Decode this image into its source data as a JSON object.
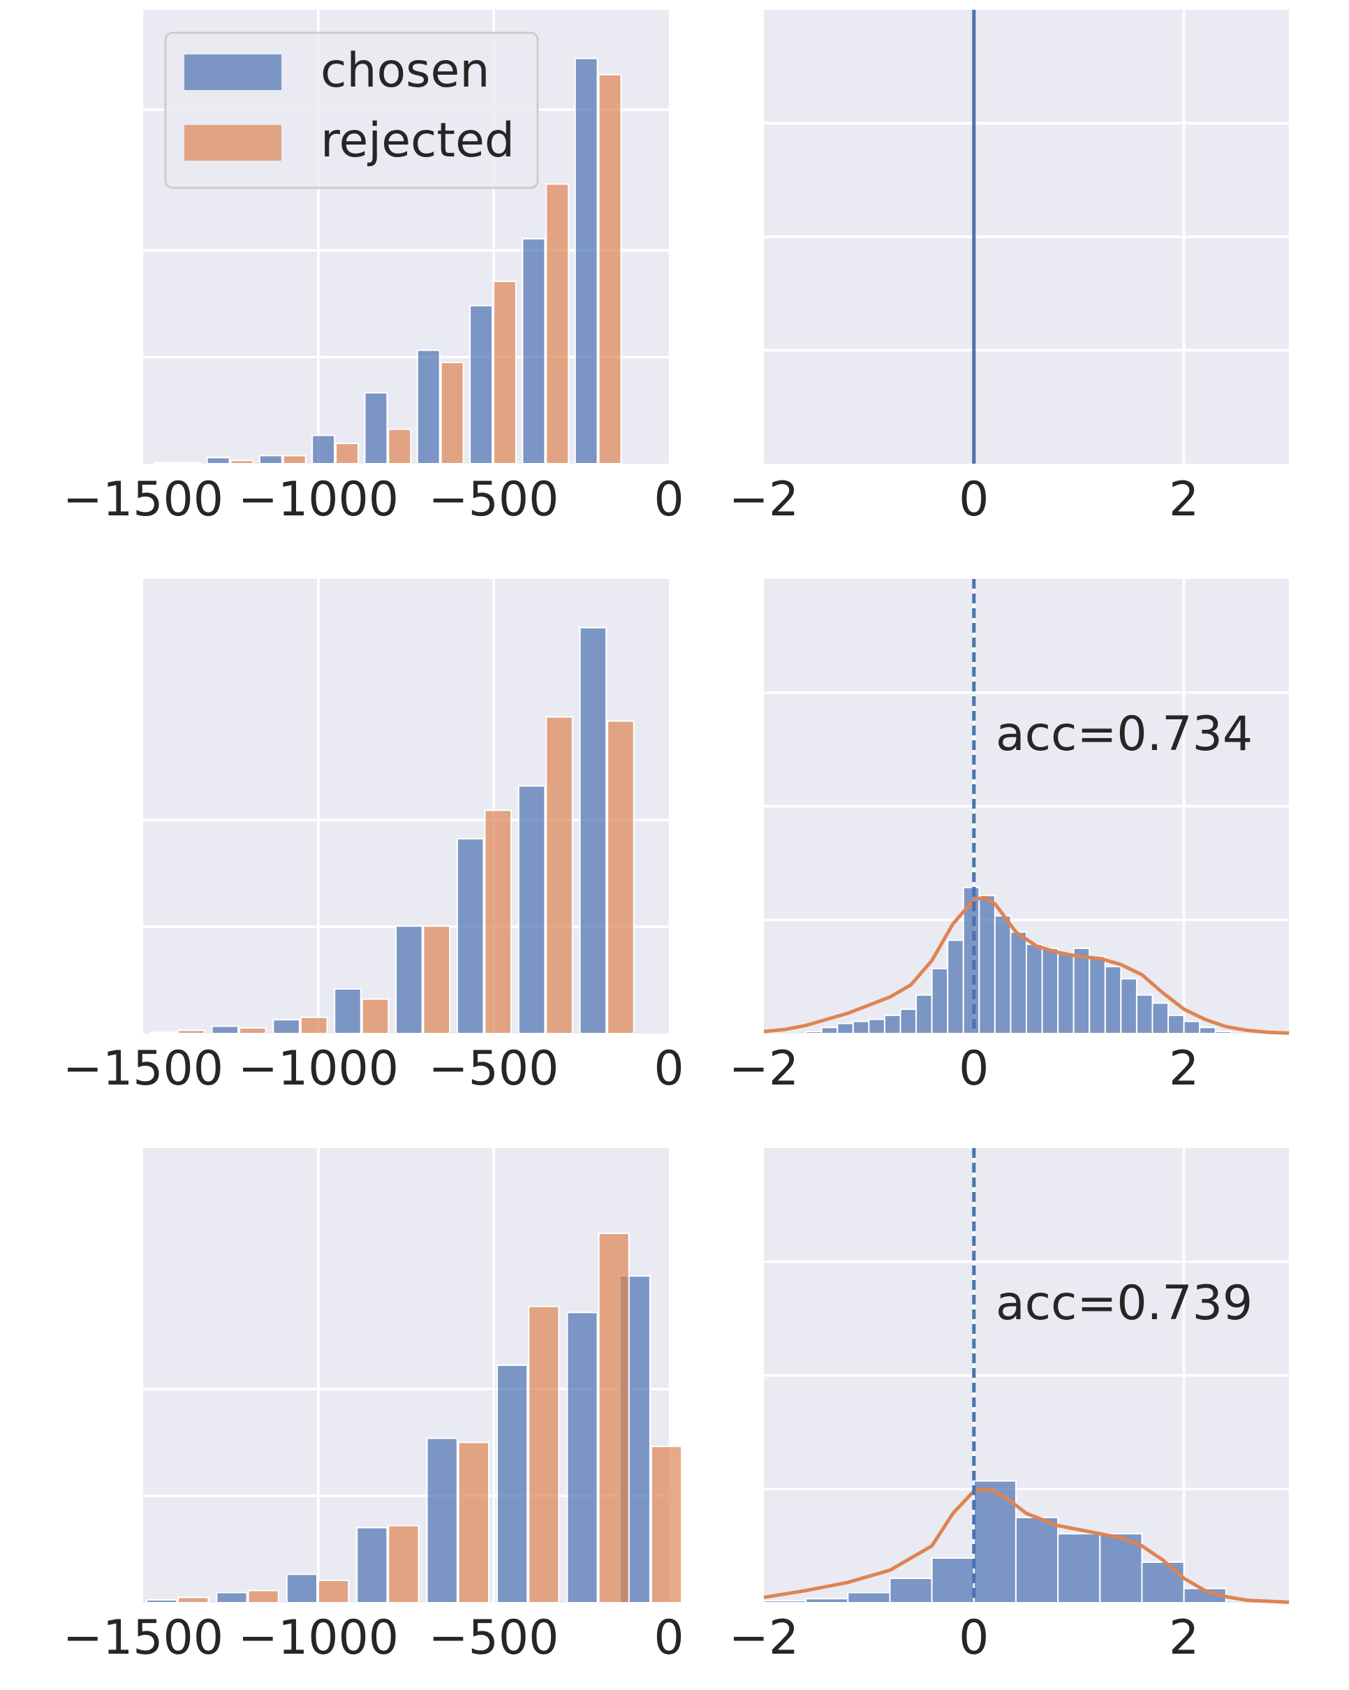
{
  "colors": {
    "chosen": "#4c72b0",
    "rejected": "#dd8452",
    "panel_bg": "#eaeaf2",
    "grid": "#ffffff",
    "text": "#262626"
  },
  "legend": {
    "chosen_label": "chosen",
    "rejected_label": "rejected",
    "placement": "upper-left of top-left panel"
  },
  "chart_data": [
    {
      "type": "bar",
      "panel": "row1-left",
      "xlim": [
        -1500,
        0
      ],
      "xticks": [
        "−1500",
        "−1000",
        "−500",
        "0"
      ],
      "x": [
        -1400,
        -1250,
        -1100,
        -950,
        -800,
        -650,
        -500,
        -350,
        -200,
        -50
      ],
      "series": [
        {
          "name": "chosen",
          "values": [
            0.3,
            1.5,
            2,
            7,
            17.5,
            28,
            39,
            55.5,
            100,
            0
          ]
        },
        {
          "name": "rejected",
          "values": [
            0.3,
            0.8,
            2,
            5,
            8.5,
            25,
            45,
            69,
            96,
            0
          ]
        }
      ],
      "ylim": [
        0,
        112
      ],
      "grid": true
    },
    {
      "type": "line",
      "panel": "row1-right",
      "xlim": [
        -2,
        3
      ],
      "xticks": [
        "−2",
        "0",
        "2"
      ],
      "vline": {
        "x": 0,
        "style": "solid"
      },
      "grid": true
    },
    {
      "type": "bar",
      "panel": "row2-left",
      "xlim": [
        -1500,
        0
      ],
      "xticks": [
        "−1500",
        "−1000",
        "−500",
        "0"
      ],
      "x": [
        -1400,
        -1225,
        -1050,
        -875,
        -700,
        -525,
        -350,
        -175,
        -50
      ],
      "series": [
        {
          "name": "chosen",
          "values": [
            0.3,
            1.8,
            3.4,
            11,
            26.5,
            48,
            61,
            100,
            0
          ]
        },
        {
          "name": "rejected",
          "values": [
            0.8,
            1.4,
            4,
            8.5,
            26.5,
            55,
            78,
            77,
            0
          ]
        }
      ],
      "ylim": [
        0,
        112
      ],
      "grid": true
    },
    {
      "type": "bar",
      "panel": "row2-right",
      "xlim": [
        -2,
        3
      ],
      "xticks": [
        "−2",
        "0",
        "2"
      ],
      "bin_edges": [
        -2.0,
        -1.6,
        -1.45,
        -1.3,
        -1.15,
        -1.0,
        -0.85,
        -0.7,
        -0.55,
        -0.4,
        -0.25,
        -0.1,
        0.05,
        0.2,
        0.35,
        0.5,
        0.65,
        0.8,
        0.95,
        1.1,
        1.25,
        1.4,
        1.55,
        1.7,
        1.85,
        2.0,
        2.15,
        2.3,
        2.45,
        2.6,
        3.0
      ],
      "values": [
        0,
        0.5,
        1.5,
        2.5,
        3,
        3.5,
        4.5,
        6,
        9.5,
        16,
        23,
        36,
        34,
        29,
        25,
        22,
        21,
        20,
        21,
        19,
        16.5,
        13.5,
        9.5,
        7.5,
        4.5,
        3,
        1.5,
        0.5,
        0,
        0
      ],
      "kde_x": [
        -2.0,
        -1.8,
        -1.6,
        -1.4,
        -1.2,
        -1.0,
        -0.8,
        -0.6,
        -0.4,
        -0.2,
        0.0,
        0.1,
        0.2,
        0.3,
        0.4,
        0.6,
        0.8,
        1.0,
        1.2,
        1.4,
        1.6,
        1.8,
        2.0,
        2.2,
        2.4,
        2.6,
        2.8,
        3.0
      ],
      "kde_y": [
        0.5,
        1,
        2,
        3.5,
        5,
        7,
        9,
        12,
        18,
        27,
        33,
        33.5,
        32,
        28.5,
        25,
        21.5,
        20,
        19,
        18.5,
        17,
        14.5,
        10,
        6,
        3.5,
        1.7,
        0.8,
        0.3,
        0.1
      ],
      "vline": {
        "x": 0,
        "style": "dashed"
      },
      "annotation": "acc=0.734",
      "ylim": [
        0,
        112
      ],
      "grid": true
    },
    {
      "type": "bar",
      "panel": "row3-left",
      "xlim": [
        -1500,
        0
      ],
      "xticks": [
        "−1500",
        "−1000",
        "−500",
        "0"
      ],
      "x": [
        -1400,
        -1200,
        -1000,
        -800,
        -600,
        -400,
        -200,
        -50
      ],
      "series": [
        {
          "name": "chosen",
          "values": [
            0.7,
            2.5,
            7,
            18.5,
            40.5,
            58.5,
            71.5,
            80.5
          ]
        },
        {
          "name": "rejected",
          "values": [
            1.3,
            3,
            5.5,
            19,
            39.5,
            73,
            91,
            38.5
          ]
        }
      ],
      "ylim": [
        0,
        112
      ],
      "grid": true
    },
    {
      "type": "bar",
      "panel": "row3-right",
      "xlim": [
        -2,
        3
      ],
      "xticks": [
        "−2",
        "0",
        "2"
      ],
      "bin_edges": [
        -2.0,
        -1.6,
        -1.2,
        -0.8,
        -0.4,
        0.0,
        0.4,
        0.8,
        1.2,
        1.6,
        2.0,
        2.4,
        3.0
      ],
      "values": [
        0.5,
        1,
        2.5,
        6,
        11,
        30,
        21,
        17,
        17,
        10,
        3.5,
        0
      ],
      "kde_x": [
        -2.0,
        -1.6,
        -1.2,
        -0.8,
        -0.4,
        -0.2,
        0.0,
        0.15,
        0.3,
        0.5,
        0.8,
        1.0,
        1.4,
        1.6,
        1.8,
        2.0,
        2.2,
        2.4,
        2.6,
        3.0
      ],
      "kde_y": [
        1.3,
        3,
        5,
        8,
        14,
        22,
        27.5,
        28,
        26,
        22,
        19,
        18,
        16,
        14,
        10.5,
        6,
        3,
        1.5,
        0.6,
        0.1
      ],
      "vline": {
        "x": 0,
        "style": "dashed"
      },
      "annotation": "acc=0.739",
      "ylim": [
        0,
        112
      ],
      "grid": true
    }
  ]
}
